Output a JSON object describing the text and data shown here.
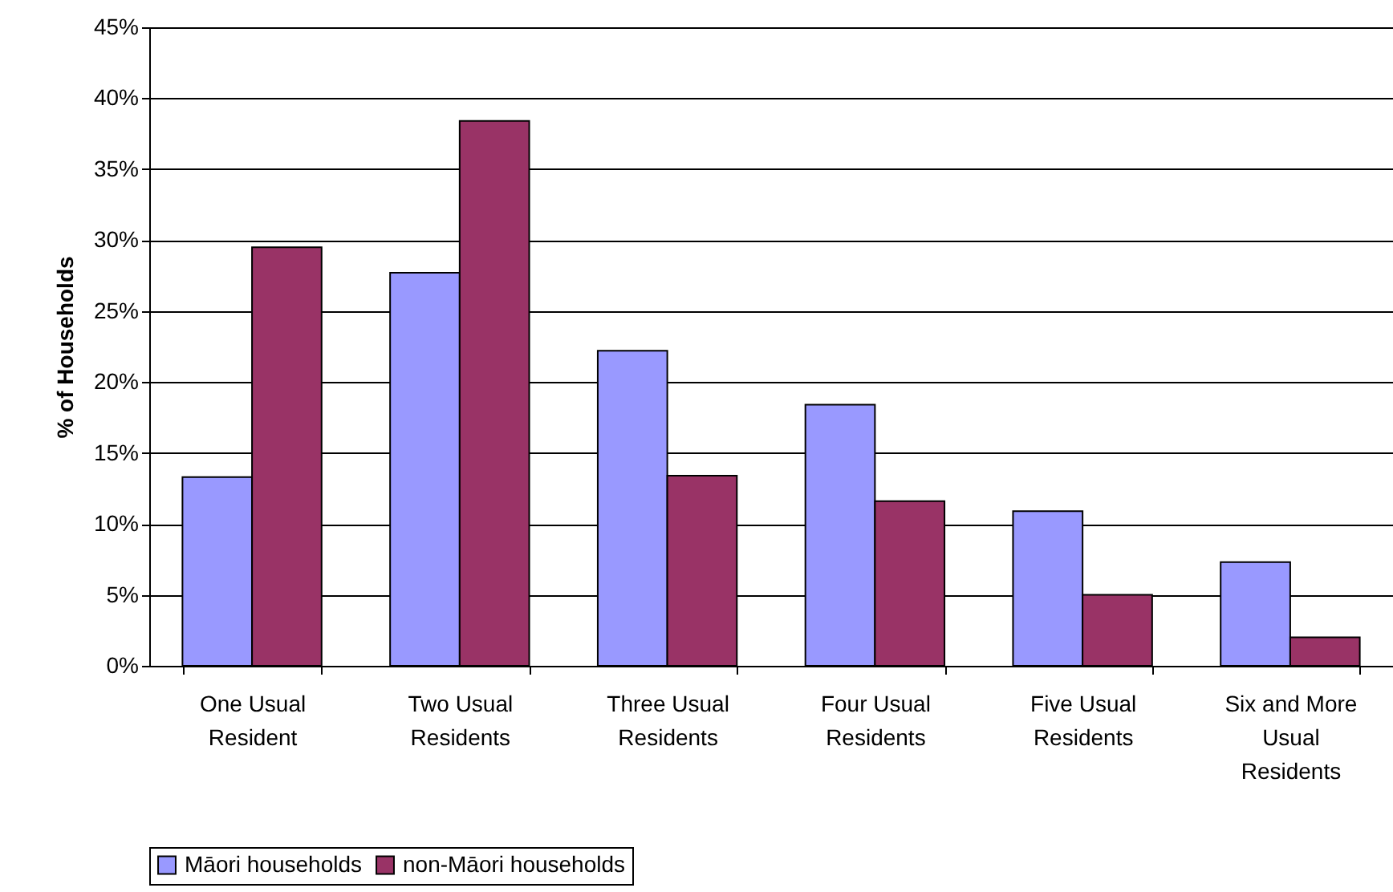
{
  "chart_data": {
    "type": "bar",
    "ylabel": "% of Households",
    "categories": [
      "One Usual Resident",
      "Two Usual Residents",
      "Three Usual Residents",
      "Four Usual Residents",
      "Five Usual Residents",
      "Six and More Usual Residents"
    ],
    "series": [
      {
        "name": "Māori households",
        "color": "#9999ff",
        "values": [
          13.3,
          27.7,
          22.2,
          18.4,
          10.9,
          7.3
        ]
      },
      {
        "name": "non-Māori households",
        "color": "#993366",
        "values": [
          29.5,
          38.4,
          13.4,
          11.6,
          5.0,
          2.0
        ]
      }
    ],
    "ylim": [
      0,
      45
    ],
    "yticks": [
      {
        "value": 0,
        "label": "0%"
      },
      {
        "value": 5,
        "label": "5%"
      },
      {
        "value": 10,
        "label": "10%"
      },
      {
        "value": 15,
        "label": "15%"
      },
      {
        "value": 20,
        "label": "20%"
      },
      {
        "value": 25,
        "label": "25%"
      },
      {
        "value": 30,
        "label": "30%"
      },
      {
        "value": 35,
        "label": "35%"
      },
      {
        "value": 40,
        "label": "40%"
      },
      {
        "value": 45,
        "label": "45%"
      }
    ],
    "grid": "y",
    "legend": "bottom"
  }
}
